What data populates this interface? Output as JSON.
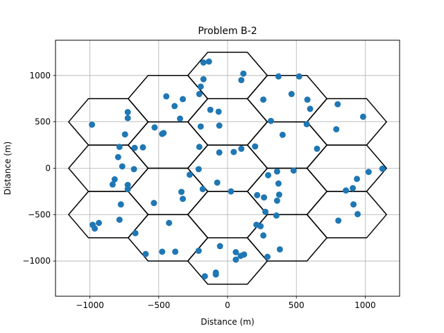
{
  "chart_data": {
    "type": "scatter",
    "title": "Problem B-2",
    "xlabel": "Distance (m)",
    "ylabel": "Distance (m)",
    "xlim": [
      -1250,
      1250
    ],
    "ylim": [
      -1380,
      1380
    ],
    "xticks": [
      -1000,
      -500,
      0,
      500,
      1000
    ],
    "yticks": [
      -1000,
      -500,
      0,
      500,
      1000
    ],
    "xtick_labels": [
      "−1000",
      "−500",
      "0",
      "500",
      "1000"
    ],
    "ytick_labels": [
      "−1000",
      "−500",
      "0",
      "500",
      "1000"
    ],
    "grid": true,
    "marker_color": "#1f77b4",
    "hex_color": "#000000",
    "hexagons": {
      "radius": 288.7,
      "centers": [
        [
          0,
          0
        ],
        [
          0,
          500
        ],
        [
          0,
          1000
        ],
        [
          433,
          250
        ],
        [
          433,
          750
        ],
        [
          866,
          500
        ],
        [
          433,
          -250
        ],
        [
          866,
          0
        ],
        [
          866,
          -500
        ],
        [
          0,
          -500
        ],
        [
          0,
          -1000
        ],
        [
          433,
          -750
        ],
        [
          -433,
          250
        ],
        [
          -433,
          750
        ],
        [
          -866,
          500
        ],
        [
          -433,
          -250
        ],
        [
          -866,
          0
        ],
        [
          -866,
          -500
        ],
        [
          -433,
          -750
        ]
      ]
    },
    "points": [
      [
        -175,
        1140
      ],
      [
        -135,
        1150
      ],
      [
        115,
        1020
      ],
      [
        100,
        950
      ],
      [
        -175,
        960
      ],
      [
        -195,
        880
      ],
      [
        -205,
        800
      ],
      [
        370,
        990
      ],
      [
        520,
        990
      ],
      [
        465,
        800
      ],
      [
        580,
        740
      ],
      [
        600,
        640
      ],
      [
        260,
        740
      ],
      [
        -445,
        775
      ],
      [
        -385,
        670
      ],
      [
        -325,
        745
      ],
      [
        -125,
        630
      ],
      [
        -65,
        610
      ],
      [
        -725,
        605
      ],
      [
        -725,
        540
      ],
      [
        -985,
        470
      ],
      [
        -745,
        365
      ],
      [
        -530,
        440
      ],
      [
        -465,
        380
      ],
      [
        -475,
        370
      ],
      [
        -345,
        535
      ],
      [
        -195,
        450
      ],
      [
        -60,
        460
      ],
      [
        315,
        510
      ],
      [
        575,
        475
      ],
      [
        800,
        690
      ],
      [
        985,
        555
      ],
      [
        790,
        420
      ],
      [
        400,
        360
      ],
      [
        650,
        210
      ],
      [
        100,
        210
      ],
      [
        200,
        235
      ],
      [
        45,
        175
      ],
      [
        -60,
        170
      ],
      [
        -205,
        230
      ],
      [
        -785,
        230
      ],
      [
        -795,
        120
      ],
      [
        -765,
        20
      ],
      [
        -675,
        220
      ],
      [
        -615,
        225
      ],
      [
        -680,
        -10
      ],
      [
        -820,
        -120
      ],
      [
        -835,
        -175
      ],
      [
        -725,
        -180
      ],
      [
        -725,
        -225
      ],
      [
        -275,
        -70
      ],
      [
        -210,
        -10
      ],
      [
        -75,
        -155
      ],
      [
        -180,
        -225
      ],
      [
        -335,
        -255
      ],
      [
        -325,
        -330
      ],
      [
        25,
        -250
      ],
      [
        215,
        -290
      ],
      [
        265,
        -315
      ],
      [
        295,
        -75
      ],
      [
        360,
        -35
      ],
      [
        480,
        -25
      ],
      [
        370,
        -165
      ],
      [
        375,
        -285
      ],
      [
        360,
        -350
      ],
      [
        1125,
        -5
      ],
      [
        1025,
        -40
      ],
      [
        940,
        -115
      ],
      [
        910,
        -215
      ],
      [
        860,
        -240
      ],
      [
        915,
        -390
      ],
      [
        945,
        -495
      ],
      [
        805,
        -565
      ],
      [
        355,
        -510
      ],
      [
        275,
        -470
      ],
      [
        -775,
        -390
      ],
      [
        -535,
        -375
      ],
      [
        -980,
        -610
      ],
      [
        -965,
        -650
      ],
      [
        -935,
        -590
      ],
      [
        -785,
        -555
      ],
      [
        -670,
        -700
      ],
      [
        -425,
        -590
      ],
      [
        -595,
        -925
      ],
      [
        -475,
        -900
      ],
      [
        -380,
        -900
      ],
      [
        -210,
        -890
      ],
      [
        -165,
        -1165
      ],
      [
        -85,
        -1125
      ],
      [
        -85,
        -1145
      ],
      [
        -55,
        -840
      ],
      [
        60,
        -905
      ],
      [
        60,
        -985
      ],
      [
        95,
        -945
      ],
      [
        120,
        -930
      ],
      [
        210,
        -610
      ],
      [
        240,
        -625
      ],
      [
        260,
        -725
      ],
      [
        380,
        -875
      ],
      [
        290,
        -955
      ]
    ]
  }
}
